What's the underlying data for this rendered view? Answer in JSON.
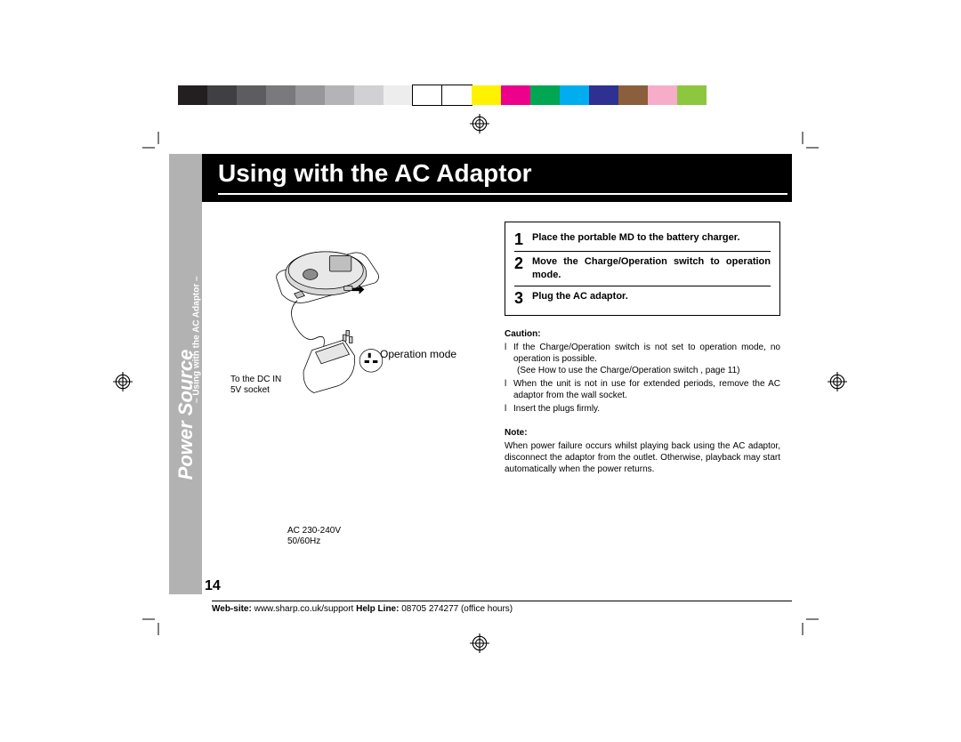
{
  "colorbar": {
    "swatches": [
      "#231f20",
      "#403f41",
      "#5d5c5e",
      "#7a797b",
      "#979698",
      "#b4b3b5",
      "#d1d0d2",
      "#eeedee",
      "#ffffff",
      "#ffffff",
      "#fff200",
      "#ed008c",
      "#00a651",
      "#00aeef",
      "#2e3192",
      "#8b5e3c",
      "#f7adc9",
      "#8dc63f"
    ],
    "border_after": 9
  },
  "sidebar": {
    "chapter": "Power Source",
    "section": "– Using with the AC Adaptor –"
  },
  "title": "Using with the AC Adaptor",
  "labels": {
    "operation_mode": "Operation mode",
    "dc_in_line1": "To the DC IN",
    "dc_in_line2": "5V socket",
    "ac_line1": "AC 230-240V",
    "ac_line2": "50/60Hz"
  },
  "steps": [
    {
      "num": "1",
      "text": "Place the portable MD to the battery charger."
    },
    {
      "num": "2",
      "text": "Move the Charge/Operation switch to operation mode."
    },
    {
      "num": "3",
      "text": "Plug the AC adaptor."
    }
  ],
  "caution": {
    "heading": "Caution:",
    "items": [
      {
        "main": "If the Charge/Operation switch is not set to operation mode, no operation is possible.",
        "sub": "(See How to use the Charge/Operation switch , page 11)"
      },
      {
        "main": "When the unit is not in use for extended periods, remove the AC adaptor from the wall socket."
      },
      {
        "main": "Insert the plugs firmly."
      }
    ]
  },
  "note": {
    "heading": "Note:",
    "text": "When power failure occurs whilst playing back using the AC adaptor, disconnect the adaptor from the outlet. Otherwise, playback may start automatically when the power returns."
  },
  "page_number": "14",
  "footer": {
    "web_label": "Web-site:",
    "web_value": " www.sharp.co.uk/support   ",
    "help_label": "Help Line:",
    "help_value": " 08705 274277 (office hours)"
  }
}
